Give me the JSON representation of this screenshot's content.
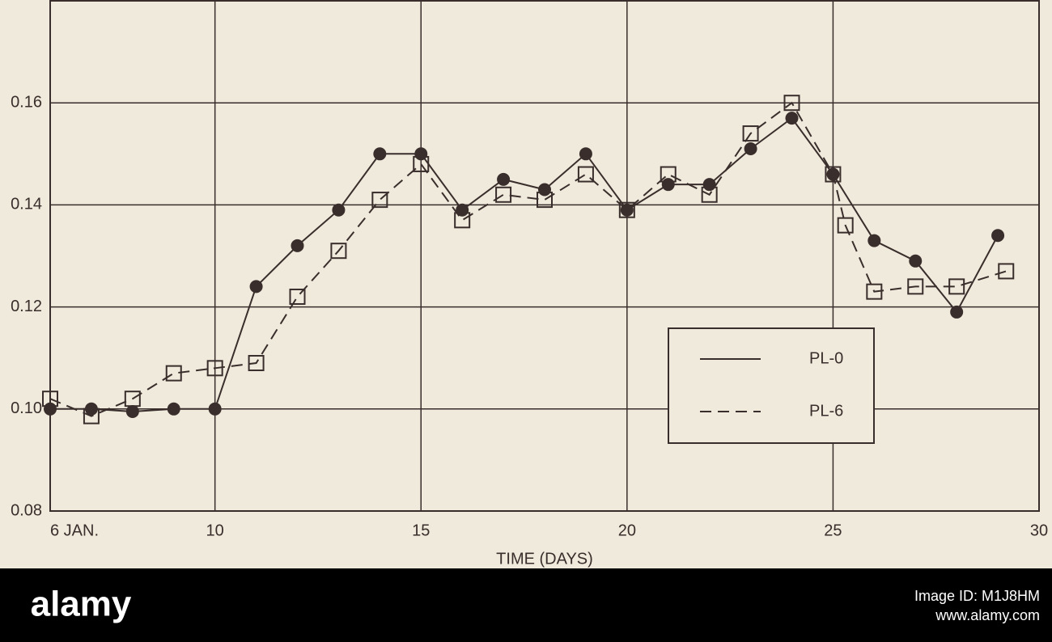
{
  "chart_data": {
    "type": "line",
    "xlabel": "TIME (DAYS)",
    "xlim": [
      6,
      30
    ],
    "xticks": [
      {
        "value": 6,
        "label": "6 JAN."
      },
      10,
      15,
      20,
      25,
      30
    ],
    "ylim": [
      0.08,
      0.18
    ],
    "yticks": [
      {
        "value": 0.08,
        "label": "0.08"
      },
      {
        "value": 0.1,
        "label": "0.10"
      },
      {
        "value": 0.12,
        "label": "0.12"
      },
      {
        "value": 0.14,
        "label": "0.14"
      },
      {
        "value": 0.16,
        "label": "0.16"
      }
    ],
    "grid": true,
    "legend": "lower-right",
    "series": [
      {
        "name": "PL-0",
        "color": "#3a2e2c",
        "dash": "solid",
        "marker": "circle",
        "x": [
          6,
          7,
          8,
          9,
          10,
          11,
          12,
          13,
          14,
          15,
          16,
          17,
          18,
          19,
          20,
          21,
          22,
          23,
          24,
          25,
          26,
          27,
          28,
          29
        ],
        "values": [
          0.1,
          0.1,
          0.0995,
          0.1,
          0.1,
          0.124,
          0.132,
          0.139,
          0.15,
          0.15,
          0.139,
          0.145,
          0.143,
          0.15,
          0.139,
          0.144,
          0.144,
          0.151,
          0.157,
          0.146,
          0.133,
          0.129,
          0.119,
          0.134
        ]
      },
      {
        "name": "PL-6",
        "color": "#3a2e2c",
        "dash": "dashed",
        "marker": "square",
        "x": [
          6,
          7,
          8,
          9,
          10,
          11,
          12,
          13,
          14,
          15,
          16,
          17,
          18,
          19,
          20,
          21,
          22,
          23,
          24,
          25,
          25.3,
          26,
          27,
          28,
          29.2
        ],
        "values": [
          0.102,
          0.0986,
          0.102,
          0.107,
          0.108,
          0.109,
          0.122,
          0.131,
          0.141,
          0.148,
          0.137,
          0.142,
          0.141,
          0.146,
          0.139,
          0.146,
          0.142,
          0.154,
          0.16,
          0.146,
          0.136,
          0.123,
          0.124,
          0.124,
          0.127
        ]
      }
    ]
  },
  "watermark": {
    "brand": "alamy",
    "image_id": "Image ID: M1J8HM",
    "site": "www.alamy.com"
  }
}
